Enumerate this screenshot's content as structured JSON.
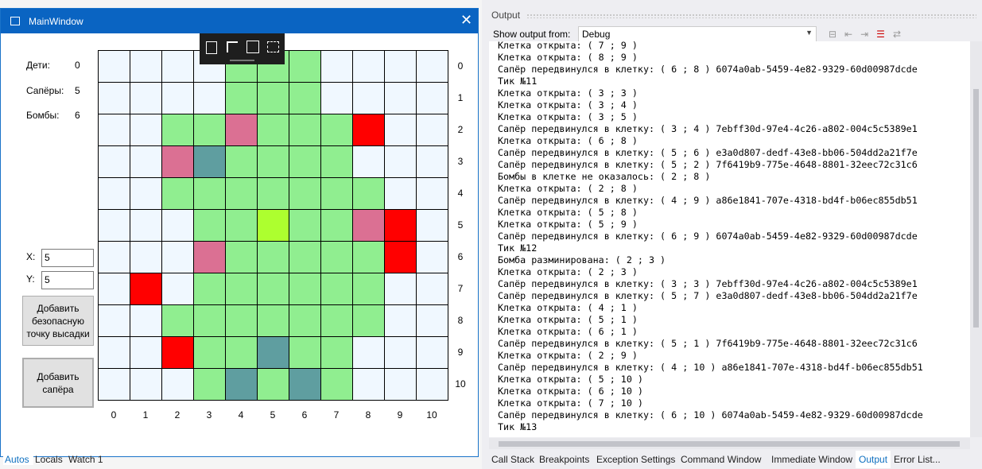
{
  "window": {
    "title": "MainWindow",
    "stats": [
      {
        "label": "Дети:",
        "value": 0
      },
      {
        "label": "Сапёры:",
        "value": 5
      },
      {
        "label": "Бомбы:",
        "value": 6
      }
    ],
    "x_label": "X:",
    "x_value": "5",
    "y_label": "Y:",
    "y_value": "5",
    "buttons": [
      "Добавить безопасную точку высадки",
      "Добавить сапёра"
    ],
    "grid": {
      "row_labels": [
        0,
        1,
        2,
        3,
        4,
        5,
        6,
        7,
        8,
        9,
        10
      ],
      "col_labels": [
        0,
        1,
        2,
        3,
        4,
        5,
        6,
        7,
        8,
        9,
        10
      ],
      "cells": [
        [
          "#f0f8ff",
          "#f0f8ff",
          "#f0f8ff",
          "#f0f8ff",
          "#90ee90",
          "#90ee90",
          "#90ee90",
          "#f0f8ff",
          "#f0f8ff",
          "#f0f8ff",
          "#f0f8ff"
        ],
        [
          "#f0f8ff",
          "#f0f8ff",
          "#f0f8ff",
          "#f0f8ff",
          "#90ee90",
          "#90ee90",
          "#90ee90",
          "#f0f8ff",
          "#f0f8ff",
          "#f0f8ff",
          "#f0f8ff"
        ],
        [
          "#f0f8ff",
          "#f0f8ff",
          "#90ee90",
          "#90ee90",
          "#db7093",
          "#90ee90",
          "#90ee90",
          "#90ee90",
          "#ff0000",
          "#f0f8ff",
          "#f0f8ff"
        ],
        [
          "#f0f8ff",
          "#f0f8ff",
          "#db7093",
          "#5f9ea0",
          "#90ee90",
          "#90ee90",
          "#90ee90",
          "#90ee90",
          "#f0f8ff",
          "#f0f8ff",
          "#f0f8ff"
        ],
        [
          "#f0f8ff",
          "#f0f8ff",
          "#90ee90",
          "#90ee90",
          "#90ee90",
          "#90ee90",
          "#90ee90",
          "#90ee90",
          "#90ee90",
          "#f0f8ff",
          "#f0f8ff"
        ],
        [
          "#f0f8ff",
          "#f0f8ff",
          "#f0f8ff",
          "#90ee90",
          "#90ee90",
          "#adff2f",
          "#90ee90",
          "#90ee90",
          "#db7093",
          "#ff0000",
          "#f0f8ff"
        ],
        [
          "#f0f8ff",
          "#f0f8ff",
          "#f0f8ff",
          "#db7093",
          "#90ee90",
          "#90ee90",
          "#90ee90",
          "#90ee90",
          "#90ee90",
          "#ff0000",
          "#f0f8ff"
        ],
        [
          "#f0f8ff",
          "#ff0000",
          "#f0f8ff",
          "#90ee90",
          "#90ee90",
          "#90ee90",
          "#90ee90",
          "#90ee90",
          "#90ee90",
          "#f0f8ff",
          "#f0f8ff"
        ],
        [
          "#f0f8ff",
          "#f0f8ff",
          "#90ee90",
          "#90ee90",
          "#90ee90",
          "#90ee90",
          "#90ee90",
          "#90ee90",
          "#90ee90",
          "#f0f8ff",
          "#f0f8ff"
        ],
        [
          "#f0f8ff",
          "#f0f8ff",
          "#ff0000",
          "#90ee90",
          "#90ee90",
          "#5f9ea0",
          "#90ee90",
          "#90ee90",
          "#f0f8ff",
          "#f0f8ff",
          "#f0f8ff"
        ],
        [
          "#f0f8ff",
          "#f0f8ff",
          "#f0f8ff",
          "#90ee90",
          "#5f9ea0",
          "#90ee90",
          "#5f9ea0",
          "#90ee90",
          "#f0f8ff",
          "#f0f8ff",
          "#f0f8ff"
        ]
      ]
    }
  },
  "debug_tabs": [
    "Autos",
    "Locals",
    "Watch 1"
  ],
  "output": {
    "title": "Output",
    "show_from_label": "Show output from:",
    "source": "Debug",
    "lines": [
      "Клетка открыта: ( 7 ; 9 )",
      "Клетка открыта: ( 8 ; 9 )",
      "Сапёр передвинулся в клетку: ( 6 ; 8 ) 6074a0ab-5459-4e82-9329-60d00987dcde",
      "Тик №11",
      "Клетка открыта: ( 3 ; 3 )",
      "Клетка открыта: ( 3 ; 4 )",
      "Клетка открыта: ( 3 ; 5 )",
      "Сапёр передвинулся в клетку: ( 3 ; 4 ) 7ebff30d-97e4-4c26-a802-004c5c5389e1",
      "Клетка открыта: ( 6 ; 8 )",
      "Сапёр передвинулся в клетку: ( 5 ; 6 ) e3a0d807-dedf-43e8-bb06-504dd2a21f7e",
      "Сапёр передвинулся в клетку: ( 5 ; 2 ) 7f6419b9-775e-4648-8801-32eec72c31c6",
      "Бомбы в клетке не оказалось: ( 2 ; 8 )",
      "Клетка открыта: ( 2 ; 8 )",
      "Сапёр передвинулся в клетку: ( 4 ; 9 ) a86e1841-707e-4318-bd4f-b06ec855db51",
      "Клетка открыта: ( 5 ; 8 )",
      "Клетка открыта: ( 5 ; 9 )",
      "Сапёр передвинулся в клетку: ( 6 ; 9 ) 6074a0ab-5459-4e82-9329-60d00987dcde",
      "Тик №12",
      "Бомба разминирована: ( 2 ; 3 )",
      "Клетка открыта: ( 2 ; 3 )",
      "Сапёр передвинулся в клетку: ( 3 ; 3 ) 7ebff30d-97e4-4c26-a802-004c5c5389e1",
      "Сапёр передвинулся в клетку: ( 5 ; 7 ) e3a0d807-dedf-43e8-bb06-504dd2a21f7e",
      "Клетка открыта: ( 4 ; 1 )",
      "Клетка открыта: ( 5 ; 1 )",
      "Клетка открыта: ( 6 ; 1 )",
      "Сапёр передвинулся в клетку: ( 5 ; 1 ) 7f6419b9-775e-4648-8801-32eec72c31c6",
      "Клетка открыта: ( 2 ; 9 )",
      "Сапёр передвинулся в клетку: ( 4 ; 10 ) a86e1841-707e-4318-bd4f-b06ec855db51",
      "Клетка открыта: ( 5 ; 10 )",
      "Клетка открыта: ( 6 ; 10 )",
      "Клетка открыта: ( 7 ; 10 )",
      "Сапёр передвинулся в клетку: ( 6 ; 10 ) 6074a0ab-5459-4e82-9329-60d00987dcde",
      "Тик №13"
    ]
  },
  "bottom_tabs": [
    "Call Stack",
    "Breakpoints",
    "Exception Settings",
    "Command Window",
    "Immediate Window",
    "Output",
    "Error List..."
  ]
}
